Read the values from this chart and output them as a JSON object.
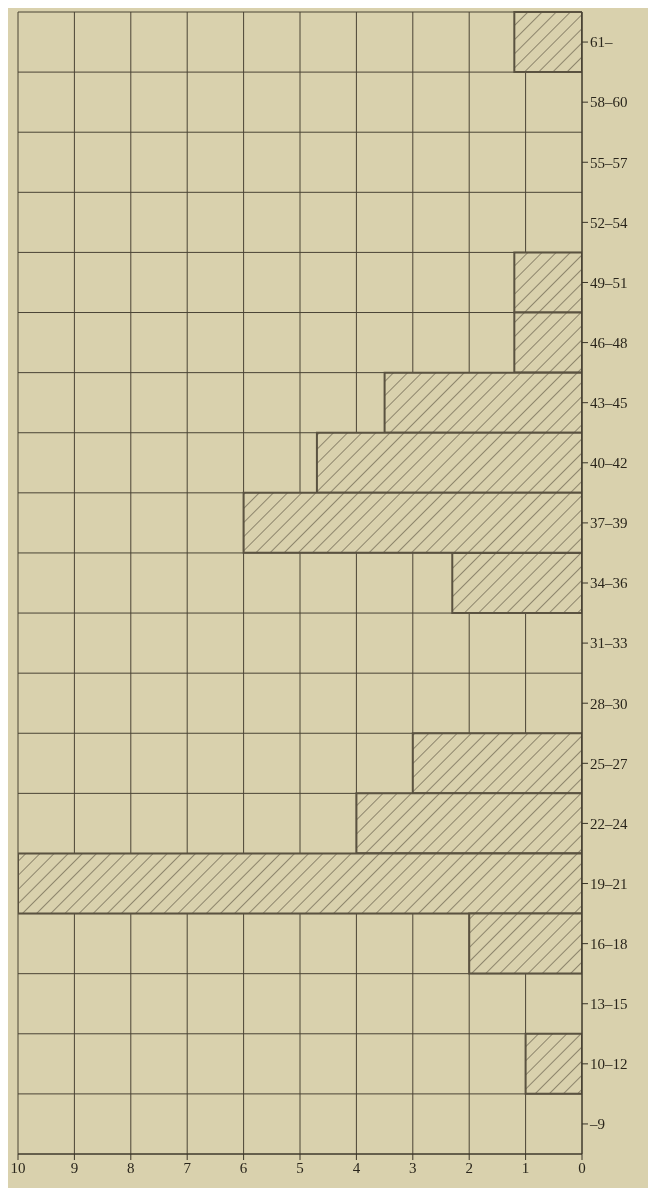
{
  "chart_data": {
    "type": "bar",
    "orientation": "horizontal",
    "categories": [
      "61–",
      "58–60",
      "55–57",
      "52–54",
      "49–51",
      "46–48",
      "43–45",
      "40–42",
      "37–39",
      "34–36",
      "31–33",
      "28–30",
      "25–27",
      "22–24",
      "19–21",
      "16–18",
      "13–15",
      "10–12",
      "–9"
    ],
    "values": [
      1.2,
      0,
      0,
      0,
      1.2,
      1.2,
      3.5,
      4.7,
      6,
      2.3,
      0,
      0,
      3,
      4,
      10,
      2,
      0,
      1,
      0
    ],
    "color": "#5a5240",
    "xlim": [
      10,
      0
    ],
    "xticks": [
      10,
      9,
      8,
      7,
      6,
      5,
      4,
      3,
      2,
      1,
      0
    ],
    "grid": true
  }
}
